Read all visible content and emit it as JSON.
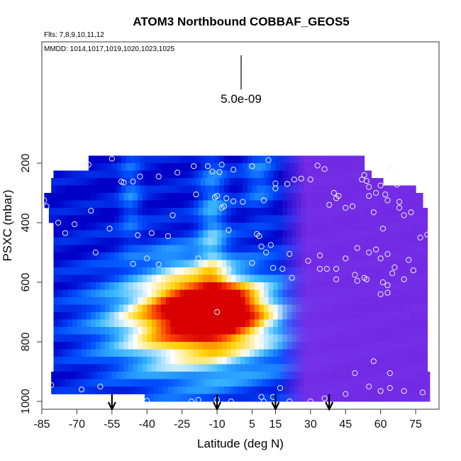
{
  "chart_data": {
    "type": "heatmap",
    "title": "ATOM3 Northbound COBBAF_GEOS5",
    "subtitle_flights": "Flts: 7,8,9,10,11,12",
    "subtitle_dates": "MMDD: 1014,1017,1019,1020,1023,1025",
    "xlabel": "Latitude (deg N)",
    "ylabel": "PSXC (mbar)",
    "xlim": [
      -85,
      85
    ],
    "ylim": [
      1000,
      0
    ],
    "x_ticks": [
      -85,
      -70,
      -55,
      -40,
      -25,
      -10,
      5,
      15,
      30,
      45,
      60,
      75
    ],
    "y_ticks": [
      200,
      400,
      600,
      800,
      1000
    ],
    "scale_bar_label": "5.0e-09",
    "arrows_latitude": [
      -55,
      -10,
      15,
      38
    ],
    "colormap": [
      "#0000c8",
      "#0050ff",
      "#38b8ff",
      "#ffffff",
      "#ffd200",
      "#ff5000",
      "#d80000"
    ],
    "right_region_color": "#7d2ee6",
    "series": [
      {
        "points": [
          [
            -65,
            205
          ],
          [
            -67,
            210
          ],
          [
            -55,
            185
          ],
          [
            -43,
            245
          ],
          [
            -35,
            245
          ],
          [
            -27,
            232
          ],
          [
            -20,
            210
          ],
          [
            -12,
            228
          ],
          [
            -3,
            222
          ],
          [
            5,
            210
          ],
          [
            12,
            190
          ],
          [
            -8,
            205
          ],
          [
            -9,
            230
          ],
          [
            -46,
            262
          ],
          [
            -51,
            262
          ],
          [
            -50,
            265
          ],
          [
            -14,
            210
          ],
          [
            -84,
            325
          ],
          [
            -83,
            345
          ],
          [
            -78,
            400
          ],
          [
            -71,
            405
          ],
          [
            -75,
            435
          ],
          [
            -64,
            360
          ],
          [
            -56,
            420
          ],
          [
            -44,
            442
          ],
          [
            -38,
            435
          ],
          [
            -29,
            375
          ],
          [
            -31,
            445
          ],
          [
            -19,
            305
          ],
          [
            -10,
            310
          ],
          [
            -8,
            350
          ],
          [
            -7,
            345
          ],
          [
            -5,
            425
          ],
          [
            -3,
            328
          ],
          [
            7,
            438
          ],
          [
            10,
            325
          ],
          [
            13,
            475
          ],
          [
            15,
            285
          ],
          [
            15,
            268
          ],
          [
            20,
            270
          ],
          [
            23,
            255
          ],
          [
            26,
            252
          ],
          [
            30,
            255
          ],
          [
            33,
            208
          ],
          [
            36,
            220
          ],
          [
            38,
            340
          ],
          [
            40,
            300
          ],
          [
            41,
            318
          ],
          [
            42,
            310
          ],
          [
            45,
            350
          ],
          [
            48,
            345
          ],
          [
            53,
            240
          ],
          [
            54,
            260
          ],
          [
            55,
            280
          ],
          [
            55,
            310
          ],
          [
            58,
            300
          ],
          [
            62,
            305
          ],
          [
            63,
            325
          ],
          [
            64,
            220
          ],
          [
            67,
            272
          ],
          [
            68,
            350
          ],
          [
            68,
            330
          ],
          [
            70,
            375
          ],
          [
            73,
            365
          ],
          [
            -82,
            445
          ],
          [
            -62,
            500
          ],
          [
            -40,
            520
          ],
          [
            -35,
            540
          ],
          [
            -46,
            538
          ],
          [
            -18,
            520
          ],
          [
            -9,
            565
          ],
          [
            -5,
            555
          ],
          [
            -11,
            315
          ],
          [
            -6,
            318
          ],
          [
            1,
            330
          ],
          [
            8,
            445
          ],
          [
            9,
            480
          ],
          [
            11,
            500
          ],
          [
            14,
            552
          ],
          [
            18,
            555
          ],
          [
            21,
            505
          ],
          [
            29,
            528
          ],
          [
            34,
            510
          ],
          [
            37,
            555
          ],
          [
            45,
            520
          ],
          [
            55,
            500
          ],
          [
            60,
            520
          ],
          [
            63,
            505
          ],
          [
            66,
            550
          ],
          [
            72,
            525
          ],
          [
            77,
            450
          ],
          [
            80,
            440
          ],
          [
            52,
            255
          ],
          [
            60,
            275
          ],
          [
            57,
            365
          ],
          [
            61,
            420
          ],
          [
            49,
            575
          ],
          [
            50,
            595
          ],
          [
            53,
            585
          ],
          [
            60,
            640
          ],
          [
            61,
            600
          ],
          [
            63,
            610
          ],
          [
            65,
            570
          ],
          [
            70,
            590
          ],
          [
            74,
            560
          ],
          [
            50,
            485
          ],
          [
            58,
            490
          ],
          [
            -81,
            945
          ],
          [
            -60,
            950
          ],
          [
            -68,
            960
          ],
          [
            -40,
            998
          ],
          [
            -21,
            1000
          ],
          [
            -18,
            995
          ],
          [
            -10,
            995
          ],
          [
            -4,
            1000
          ],
          [
            9,
            985
          ],
          [
            10,
            1000
          ],
          [
            14,
            985
          ],
          [
            17,
            955
          ],
          [
            21,
            1000
          ],
          [
            30,
            1000
          ],
          [
            36,
            990
          ],
          [
            45,
            975
          ],
          [
            55,
            950
          ],
          [
            60,
            965
          ],
          [
            64,
            955
          ],
          [
            70,
            965
          ],
          [
            78,
            970
          ],
          [
            49,
            905
          ],
          [
            57,
            865
          ],
          [
            64,
            905
          ],
          [
            -10,
            700
          ],
          [
            5,
            535
          ],
          [
            22,
            585
          ],
          [
            34,
            555
          ],
          [
            41,
            590
          ],
          [
            54,
            590
          ],
          [
            63,
            635
          ],
          [
            41,
            555
          ]
        ]
      }
    ]
  }
}
